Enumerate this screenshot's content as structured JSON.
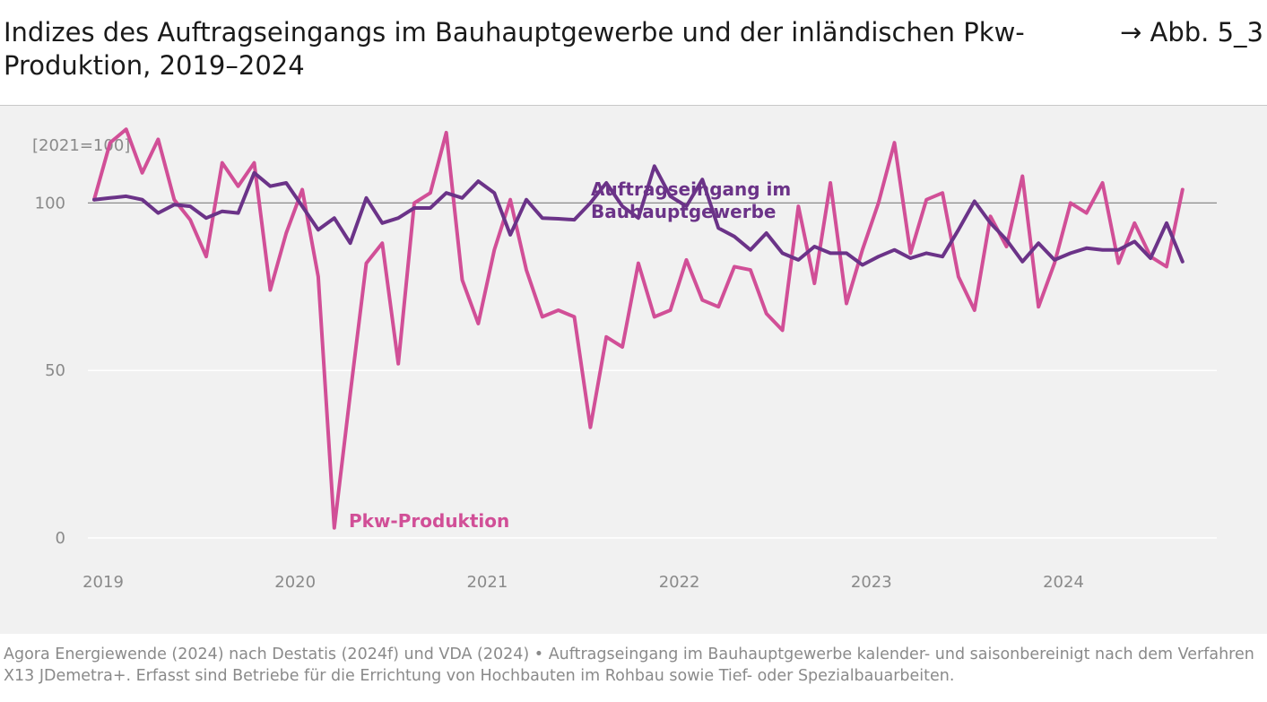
{
  "header": {
    "title": "Indizes des Auftragseingangs im Bauhauptgewerbe und der inländischen Pkw-Produktion, 2019–2024",
    "figure_ref": "→ Abb. 5_3"
  },
  "footer": {
    "source": "Agora Energiewende (2024) nach Destatis (2024f) und VDA (2024) • Auftragseingang im Bauhauptgewerbe kalender- und saisonbereinigt nach dem Verfahren X13 JDemetra+. Erfasst sind Betriebe für die Errichtung von Hochbauten im Rohbau sowie Tief- oder Spezialbauarbeiten."
  },
  "colors": {
    "background": "#ffffff",
    "panel": "#f1f1f1",
    "construction": "#6b3388",
    "car": "#d14f97",
    "reference_line": "#8c8c8c",
    "grid": "#ffffff",
    "tick_text": "#8a8a8a"
  },
  "chart_data": {
    "type": "line",
    "unit_label": "[2021=100]",
    "ylim": [
      0,
      125
    ],
    "yticks": [
      0,
      50,
      100
    ],
    "reference_line": 100,
    "x_tick_labels": [
      "2019",
      "2020",
      "2021",
      "2022",
      "2023",
      "2024"
    ],
    "x_start": "2019-01",
    "x_frequency": "monthly",
    "grid": "horizontal",
    "annotations": [
      {
        "text_lines": [
          "Auftragseingang im",
          "Bauhauptgewerbe"
        ],
        "series": "Auftragseingang im Bauhauptgewerbe"
      },
      {
        "text_lines": [
          "Pkw-Produktion"
        ],
        "series": "Pkw-Produktion"
      }
    ],
    "series": [
      {
        "name": "Auftragseingang im Bauhauptgewerbe",
        "color": "#6b3388",
        "values": [
          101,
          101.5,
          102,
          101,
          97,
          99.5,
          99,
          95.5,
          97.5,
          97,
          109,
          105,
          106,
          99,
          92,
          95.5,
          88,
          101.5,
          94,
          95.5,
          98.5,
          98.5,
          103,
          101.5,
          106.5,
          103,
          90.5,
          101,
          95.5,
          95.3,
          95,
          100,
          106,
          99,
          95.5,
          111,
          102,
          99,
          107,
          92.5,
          90,
          86,
          91,
          85,
          83,
          87,
          85,
          85,
          81.5,
          84,
          86,
          83.5,
          85,
          84,
          92,
          100.5,
          94,
          89,
          82.5,
          88,
          83,
          85,
          86.5,
          86,
          86,
          88.5,
          83.5,
          94,
          82.5
        ]
      },
      {
        "name": "Pkw-Produktion",
        "color": "#d14f97",
        "values": [
          101,
          118,
          122,
          109,
          119,
          101,
          95,
          84,
          112,
          105,
          112,
          74,
          91,
          104,
          78,
          3,
          43,
          82,
          88,
          52,
          100,
          103,
          121,
          77,
          64,
          86,
          101,
          80,
          66,
          68,
          66,
          33,
          60,
          57,
          82,
          66,
          68,
          83,
          71,
          69,
          81,
          80,
          67,
          62,
          99,
          76,
          106,
          70,
          86,
          100,
          118,
          85,
          101,
          103,
          78,
          68,
          96,
          87,
          108,
          69,
          82,
          100,
          97,
          106,
          82,
          94,
          84,
          81,
          104
        ]
      }
    ]
  }
}
